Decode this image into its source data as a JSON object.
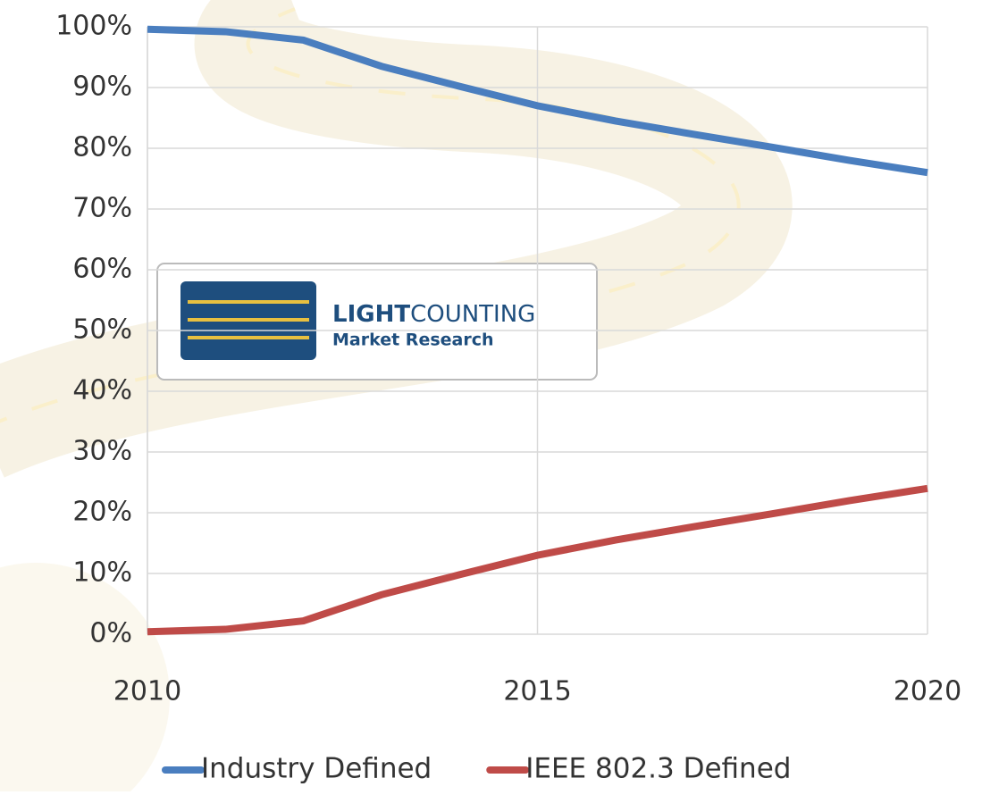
{
  "chart_data": {
    "type": "line",
    "x": [
      2010,
      2011,
      2012,
      2013,
      2014,
      2015,
      2016,
      2017,
      2018,
      2019,
      2020
    ],
    "series": [
      {
        "name": "Industry Defined",
        "color": "#4a7ebf",
        "values": [
          99.6,
          99.2,
          97.8,
          93.5,
          90.2,
          87,
          84.5,
          82.3,
          80.2,
          78,
          76
        ]
      },
      {
        "name": "IEEE 802.3 Defined",
        "color": "#bf4b48",
        "values": [
          0.4,
          0.8,
          2.2,
          6.5,
          9.8,
          13,
          15.5,
          17.7,
          19.8,
          22,
          24
        ]
      }
    ],
    "xlim": [
      2010,
      2020
    ],
    "xticks": [
      2010,
      2015,
      2020
    ],
    "ylim": [
      0,
      100
    ],
    "yticks": [
      {
        "value": 0,
        "label": "0%"
      },
      {
        "value": 10,
        "label": "10%"
      },
      {
        "value": 20,
        "label": "20%"
      },
      {
        "value": 30,
        "label": "30%"
      },
      {
        "value": 40,
        "label": "40%"
      },
      {
        "value": 50,
        "label": "50%"
      },
      {
        "value": 60,
        "label": "60%"
      },
      {
        "value": 70,
        "label": "70%"
      },
      {
        "value": 80,
        "label": "80%"
      },
      {
        "value": 90,
        "label": "90%"
      },
      {
        "value": 100,
        "label": "100%"
      }
    ],
    "grid": true,
    "legend": "bottom"
  },
  "logo": {
    "bold": "LIGHT",
    "regular": "COUNTING",
    "subtitle": "Market Research"
  }
}
